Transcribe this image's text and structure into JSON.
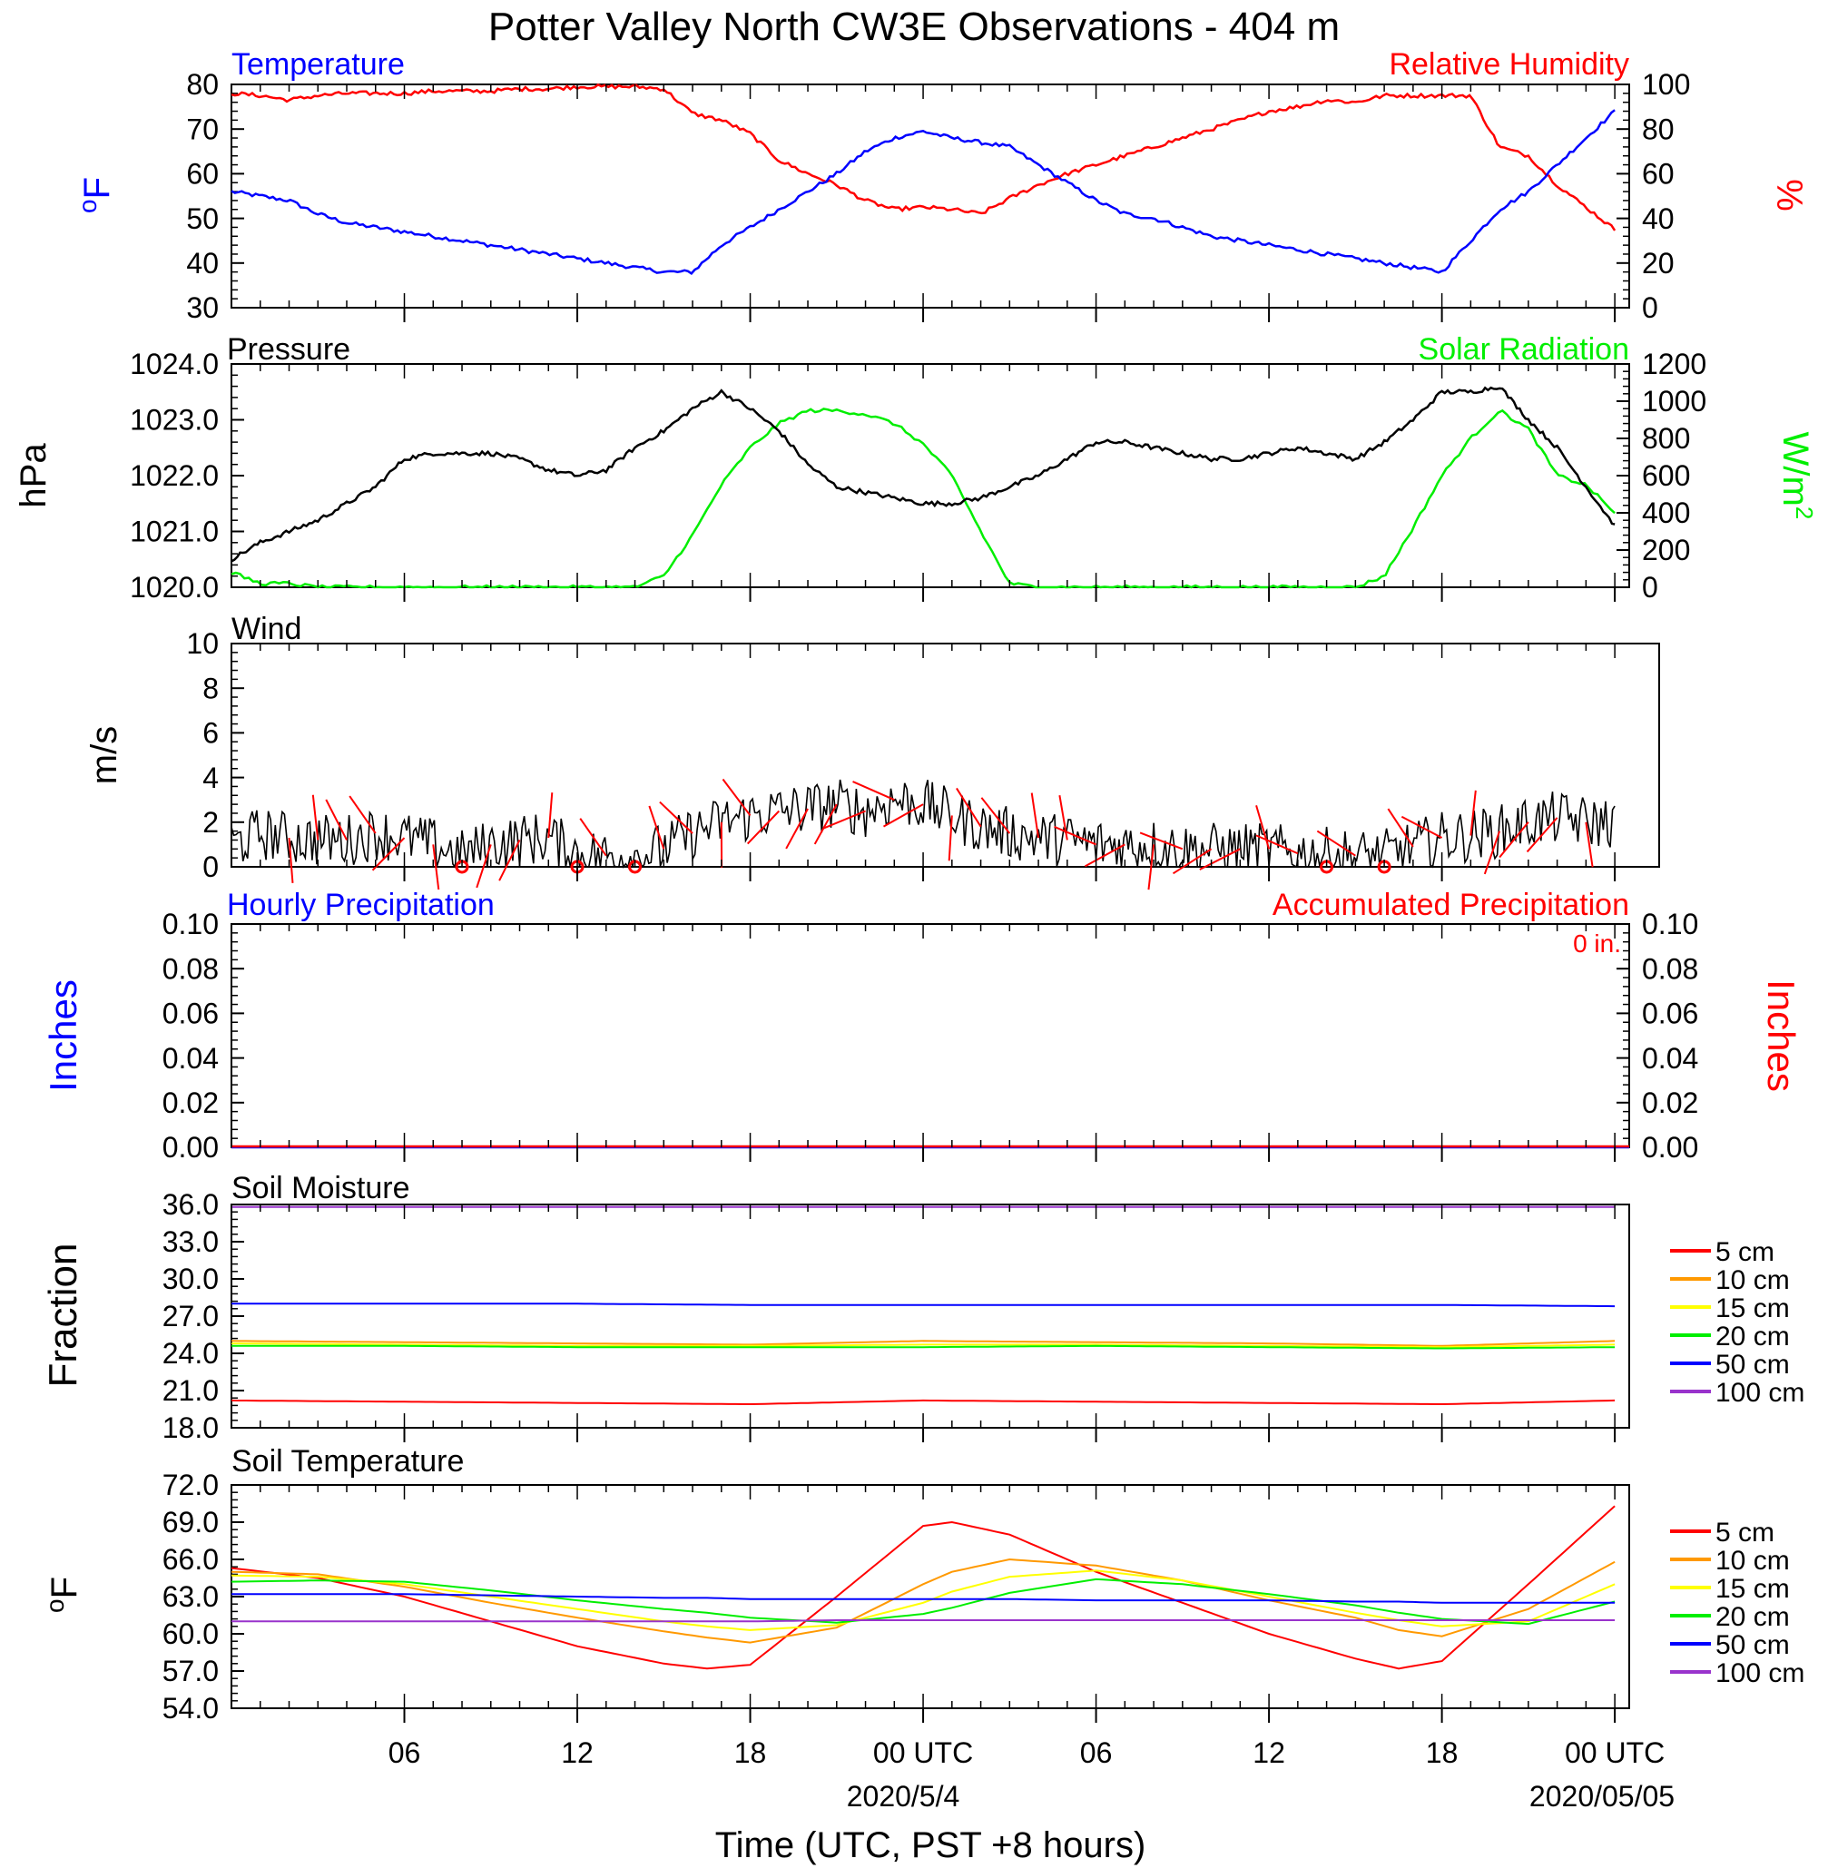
{
  "title": "Potter Valley North CW3E Observations - 404 m",
  "xaxis": {
    "title": "Time (UTC, PST +8 hours)",
    "tick_labels": [
      "06",
      "12",
      "18",
      "00 UTC",
      "06",
      "12",
      "18",
      "00 UTC"
    ],
    "date_labels": [
      "2020/5/4",
      "2020/05/05"
    ]
  },
  "colors": {
    "blue": "#0000ff",
    "red": "#ff0000",
    "green": "#00ee00",
    "black": "#000000",
    "orange": "#ff9900",
    "yellow": "#ffff00",
    "purple": "#9933cc"
  },
  "panels": {
    "temp_rh": {
      "left_title": "Temperature",
      "right_title": "Relative Humidity",
      "left_unit": "oF",
      "right_unit": "%",
      "left_ticks": [
        "80",
        "70",
        "60",
        "50",
        "40",
        "30"
      ],
      "right_ticks": [
        "100",
        "80",
        "60",
        "40",
        "20",
        "0"
      ]
    },
    "pressure_solar": {
      "left_title": "Pressure",
      "right_title": "Solar Radiation",
      "left_unit": "hPa",
      "right_unit": "W/m2",
      "left_ticks": [
        "1024.0",
        "1023.0",
        "1022.0",
        "1021.0",
        "1020.0"
      ],
      "right_ticks": [
        "1200",
        "1000",
        "800",
        "600",
        "400",
        "200",
        "0"
      ]
    },
    "wind": {
      "left_title": "Wind",
      "left_unit": "m/s",
      "left_ticks": [
        "10",
        "8",
        "6",
        "4",
        "2",
        "0"
      ]
    },
    "precip": {
      "left_title": "Hourly Precipitation",
      "right_title": "Accumulated Precipitation",
      "left_unit": "Inches",
      "right_unit": "Inches",
      "accum_note": "0 in.",
      "left_ticks": [
        "0.10",
        "0.08",
        "0.06",
        "0.04",
        "0.02",
        "0.00"
      ],
      "right_ticks": [
        "0.10",
        "0.08",
        "0.06",
        "0.04",
        "0.02",
        "0.00"
      ]
    },
    "soil_moisture": {
      "left_title": "Soil Moisture",
      "left_unit": "Fraction",
      "left_ticks": [
        "36.0",
        "33.0",
        "30.0",
        "27.0",
        "24.0",
        "21.0",
        "18.0"
      ],
      "legend": [
        "5 cm",
        "10 cm",
        "15 cm",
        "20 cm",
        "50 cm",
        "100 cm"
      ]
    },
    "soil_temp": {
      "left_title": "Soil Temperature",
      "left_unit": "oF",
      "left_ticks": [
        "72.0",
        "69.0",
        "66.0",
        "63.0",
        "60.0",
        "57.0",
        "54.0"
      ],
      "legend": [
        "5 cm",
        "10 cm",
        "15 cm",
        "20 cm",
        "50 cm",
        "100 cm"
      ]
    }
  },
  "chart_data": [
    {
      "type": "line",
      "title": "Temperature / Relative Humidity",
      "x_hours": [
        0,
        1,
        2,
        3,
        4,
        5,
        6,
        7,
        8,
        9,
        10,
        11,
        12,
        13,
        14,
        15,
        16,
        17,
        18,
        19,
        20,
        21,
        22,
        23,
        24,
        25,
        26,
        27,
        28,
        29,
        30,
        31,
        32,
        33,
        34,
        35,
        36,
        37,
        38,
        39,
        40,
        41,
        42,
        43,
        44,
        45,
        46,
        47,
        48
      ],
      "series": [
        {
          "name": "Temperature",
          "axis": "left",
          "color": "blue",
          "ylim": [
            30,
            80
          ],
          "values": [
            56,
            55,
            54,
            51,
            49,
            48,
            47,
            46,
            45,
            44,
            43,
            42,
            41,
            40,
            39,
            38,
            38,
            44,
            48,
            52,
            56,
            60,
            65,
            68,
            69.5,
            68,
            67,
            66,
            62,
            58,
            54,
            51,
            50,
            48,
            46,
            45,
            44,
            43,
            42,
            41,
            40,
            39,
            38,
            45,
            52,
            56,
            62,
            68,
            74
          ]
        },
        {
          "name": "Relative Humidity",
          "axis": "right",
          "color": "red",
          "ylim": [
            0,
            100
          ],
          "values": [
            96,
            95,
            93,
            95,
            96,
            96,
            96,
            97,
            97,
            97,
            98,
            98,
            99,
            99,
            99,
            98,
            87,
            84,
            78,
            66,
            60,
            55,
            48,
            44,
            45,
            44,
            42,
            49,
            55,
            60,
            64,
            68,
            72,
            76,
            80,
            84,
            88,
            90,
            93,
            92,
            95,
            95,
            95,
            95,
            72,
            68,
            55,
            45,
            35
          ]
        }
      ]
    },
    {
      "type": "line",
      "title": "Pressure / Solar Radiation",
      "x_hours": [
        0,
        1,
        2,
        3,
        4,
        5,
        6,
        7,
        8,
        9,
        10,
        11,
        12,
        13,
        14,
        15,
        16,
        17,
        18,
        19,
        20,
        21,
        22,
        23,
        24,
        25,
        26,
        27,
        28,
        29,
        30,
        31,
        32,
        33,
        34,
        35,
        36,
        37,
        38,
        39,
        40,
        41,
        42,
        43,
        44,
        45,
        46,
        47,
        48
      ],
      "series": [
        {
          "name": "Pressure",
          "axis": "left",
          "color": "black",
          "ylim": [
            1020.0,
            1024.0
          ],
          "values": [
            1020.5,
            1020.8,
            1021.0,
            1021.2,
            1021.5,
            1021.8,
            1022.3,
            1022.4,
            1022.4,
            1022.4,
            1022.3,
            1022.1,
            1022.0,
            1022.1,
            1022.5,
            1022.8,
            1023.2,
            1023.5,
            1023.2,
            1022.8,
            1022.2,
            1021.8,
            1021.7,
            1021.6,
            1021.5,
            1021.5,
            1021.6,
            1021.8,
            1022.0,
            1022.3,
            1022.6,
            1022.6,
            1022.5,
            1022.4,
            1022.3,
            1022.3,
            1022.4,
            1022.5,
            1022.4,
            1022.3,
            1022.6,
            1023.0,
            1023.5,
            1023.5,
            1023.6,
            1023.0,
            1022.5,
            1021.8,
            1021.1
          ]
        },
        {
          "name": "Solar Radiation",
          "axis": "right",
          "color": "green",
          "ylim": [
            0,
            1200
          ],
          "values": [
            80,
            20,
            20,
            0,
            0,
            0,
            0,
            0,
            0,
            0,
            0,
            0,
            0,
            0,
            0,
            60,
            280,
            550,
            750,
            880,
            950,
            950,
            930,
            880,
            770,
            600,
            300,
            20,
            0,
            0,
            0,
            0,
            0,
            0,
            0,
            0,
            0,
            0,
            0,
            0,
            60,
            320,
            600,
            800,
            950,
            850,
            600,
            550,
            400
          ]
        }
      ]
    },
    {
      "type": "line",
      "title": "Wind",
      "x_hours": [
        0,
        1,
        2,
        3,
        4,
        5,
        6,
        7,
        8,
        9,
        10,
        11,
        12,
        13,
        14,
        15,
        16,
        17,
        18,
        19,
        20,
        21,
        22,
        23,
        24,
        25,
        26,
        27,
        28,
        29,
        30,
        31,
        32,
        33,
        34,
        35,
        36,
        37,
        38,
        39,
        40,
        41,
        42,
        43,
        44,
        45,
        46,
        47,
        48
      ],
      "series": [
        {
          "name": "Wind",
          "color": "black",
          "ylim": [
            0,
            10
          ],
          "values": [
            1.0,
            1.5,
            1.3,
            1.2,
            1.2,
            1.5,
            1.3,
            1.0,
            0.5,
            1.0,
            1.2,
            1.3,
            0.6,
            0.5,
            0.5,
            0.8,
            1.5,
            2.0,
            2.3,
            2.5,
            2.6,
            2.8,
            2.5,
            3.0,
            2.8,
            2.3,
            1.8,
            1.5,
            1.3,
            1.2,
            1.0,
            1.0,
            1.0,
            0.8,
            0.8,
            0.8,
            0.8,
            0.6,
            0.6,
            0.5,
            0.5,
            0.9,
            1.3,
            1.4,
            1.6,
            2.0,
            2.2,
            2.0,
            2.0
          ]
        }
      ]
    },
    {
      "type": "line",
      "title": "Precipitation",
      "series": [
        {
          "name": "Hourly Precipitation",
          "color": "blue",
          "values": [
            0,
            0
          ]
        },
        {
          "name": "Accumulated Precipitation",
          "color": "red",
          "values": [
            0,
            0
          ]
        }
      ],
      "ylim": [
        0.0,
        0.1
      ]
    },
    {
      "type": "line",
      "title": "Soil Moisture",
      "x_hours": [
        0,
        6,
        12,
        18,
        24,
        30,
        36,
        42,
        48
      ],
      "ylim": [
        18.0,
        36.0
      ],
      "series": [
        {
          "name": "5 cm",
          "color": "red",
          "values": [
            20.2,
            20.1,
            20.0,
            19.9,
            20.2,
            20.1,
            20.0,
            19.9,
            20.2
          ]
        },
        {
          "name": "10 cm",
          "color": "orange",
          "values": [
            25.0,
            24.9,
            24.8,
            24.7,
            25.0,
            24.9,
            24.8,
            24.6,
            25.0
          ]
        },
        {
          "name": "15 cm",
          "color": "yellow",
          "values": [
            24.8,
            24.7,
            24.6,
            24.6,
            24.7,
            24.7,
            24.6,
            24.5,
            24.7
          ]
        },
        {
          "name": "20 cm",
          "color": "green",
          "values": [
            24.6,
            24.6,
            24.5,
            24.5,
            24.5,
            24.6,
            24.5,
            24.4,
            24.5
          ]
        },
        {
          "name": "50 cm",
          "color": "blue",
          "values": [
            28.0,
            28.0,
            28.0,
            27.9,
            27.9,
            27.9,
            27.9,
            27.9,
            27.8
          ]
        },
        {
          "name": "100 cm",
          "color": "purple",
          "values": [
            35.8,
            35.8,
            35.8,
            35.8,
            35.8,
            35.8,
            35.8,
            35.8,
            35.8
          ]
        }
      ]
    },
    {
      "type": "line",
      "title": "Soil Temperature",
      "x_hours": [
        0,
        3,
        6,
        9,
        12,
        15,
        16.5,
        18,
        21,
        24,
        25,
        27,
        30,
        33,
        36,
        39,
        40.5,
        42,
        45,
        48
      ],
      "ylim": [
        54.0,
        72.0
      ],
      "series": [
        {
          "name": "5 cm",
          "color": "red",
          "values": [
            65.3,
            64.5,
            63.0,
            61.0,
            59.0,
            57.6,
            57.2,
            57.5,
            63.0,
            68.7,
            69.0,
            68.0,
            65.0,
            62.5,
            60.0,
            58.0,
            57.2,
            57.8,
            64.0,
            70.3
          ]
        },
        {
          "name": "10 cm",
          "color": "orange",
          "values": [
            65.0,
            64.8,
            63.8,
            62.5,
            61.3,
            60.2,
            59.7,
            59.3,
            60.5,
            64.0,
            65.0,
            66.0,
            65.5,
            64.3,
            62.7,
            61.3,
            60.3,
            59.8,
            62.0,
            65.8
          ]
        },
        {
          "name": "15 cm",
          "color": "yellow",
          "values": [
            64.7,
            64.6,
            64.0,
            63.0,
            62.0,
            61.0,
            60.6,
            60.3,
            60.7,
            62.5,
            63.4,
            64.6,
            65.1,
            64.3,
            63.0,
            61.7,
            61.1,
            60.6,
            61.0,
            64.0
          ]
        },
        {
          "name": "20 cm",
          "color": "green",
          "values": [
            64.2,
            64.3,
            64.2,
            63.5,
            62.7,
            62.0,
            61.7,
            61.3,
            60.9,
            61.6,
            62.1,
            63.3,
            64.4,
            64.0,
            63.2,
            62.3,
            61.7,
            61.2,
            60.8,
            62.6
          ]
        },
        {
          "name": "50 cm",
          "color": "blue",
          "values": [
            63.2,
            63.2,
            63.2,
            63.1,
            63.0,
            62.9,
            62.9,
            62.8,
            62.8,
            62.8,
            62.8,
            62.8,
            62.7,
            62.7,
            62.7,
            62.6,
            62.6,
            62.5,
            62.5,
            62.5
          ]
        },
        {
          "name": "100 cm",
          "color": "purple",
          "values": [
            61.0,
            61.0,
            61.0,
            61.0,
            61.0,
            61.0,
            61.0,
            61.0,
            61.1,
            61.1,
            61.1,
            61.1,
            61.1,
            61.1,
            61.1,
            61.1,
            61.1,
            61.1,
            61.1,
            61.1
          ]
        }
      ]
    }
  ]
}
